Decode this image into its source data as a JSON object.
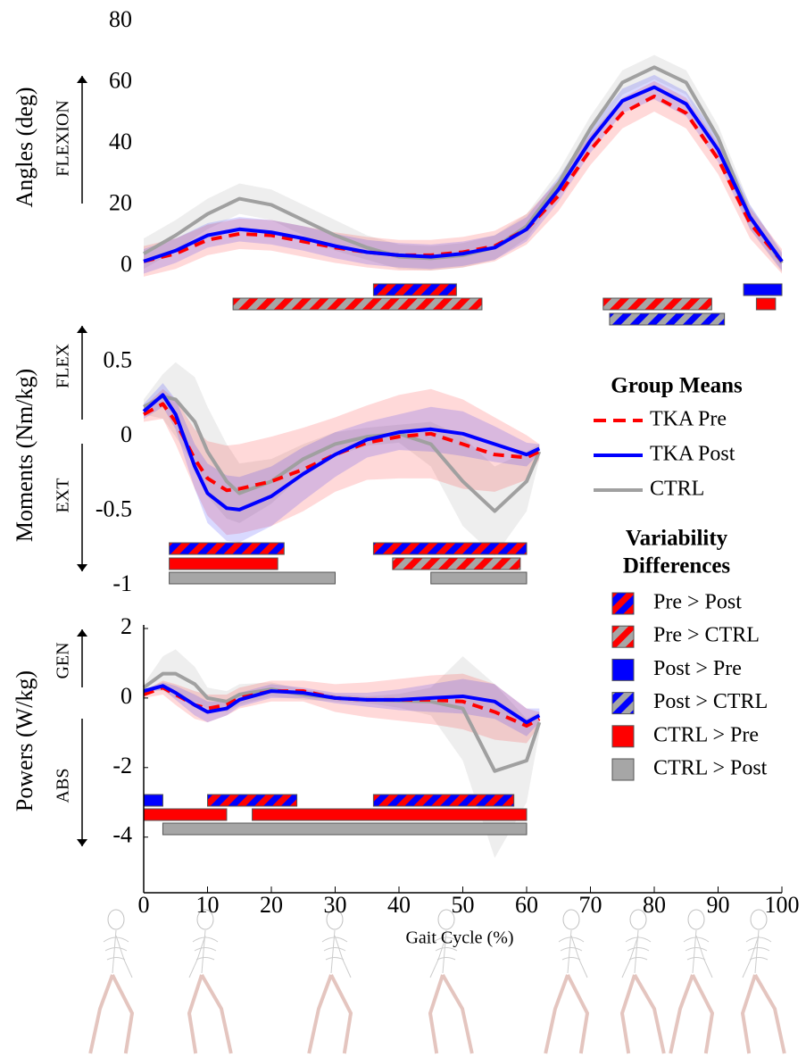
{
  "chart_data": [
    {
      "type": "line",
      "y_label": "Angles (deg)",
      "direction_labels": [
        "FLEXION"
      ],
      "ylim": [
        -5,
        80
      ],
      "yticks": [
        0,
        20,
        40,
        60,
        80
      ],
      "x": [
        0,
        5,
        10,
        15,
        20,
        25,
        30,
        35,
        40,
        45,
        50,
        55,
        60,
        65,
        70,
        75,
        80,
        85,
        90,
        95,
        100
      ],
      "series": [
        {
          "name": "TKA Pre",
          "color": "#ff0000",
          "style": "dashed",
          "values": [
            1.5,
            4,
            8.5,
            10.5,
            10,
            8,
            6,
            4.5,
            3.5,
            3.5,
            4.5,
            6.5,
            12,
            23,
            38,
            50,
            55.5,
            50,
            35,
            14,
            1.5
          ],
          "sd": [
            5,
            5,
            5,
            5,
            5,
            5,
            5,
            5,
            5,
            5,
            5,
            5,
            5,
            5,
            5,
            5,
            5,
            5,
            5,
            5,
            4
          ]
        },
        {
          "name": "TKA Post",
          "color": "#0000ff",
          "style": "solid",
          "values": [
            1.5,
            5,
            10,
            12,
            11,
            9,
            6.5,
            4.5,
            3.5,
            3,
            4,
            6,
            12,
            25,
            41,
            54,
            58.5,
            53,
            38,
            16,
            1.5
          ],
          "sd": [
            4,
            4,
            4,
            4,
            4,
            4,
            4,
            4,
            4,
            4,
            4,
            4,
            4,
            4,
            4,
            4,
            4,
            4,
            4,
            4,
            3
          ]
        },
        {
          "name": "CTRL",
          "color": "#a0a0a0",
          "style": "solid",
          "values": [
            4,
            10,
            17,
            22,
            20,
            15,
            10,
            6,
            3,
            2.5,
            3.5,
            6,
            13,
            27,
            45,
            60,
            65,
            60,
            42,
            16,
            1
          ],
          "sd": [
            5,
            5,
            5,
            5,
            5,
            5,
            5,
            4,
            4,
            4,
            4,
            4,
            4,
            4,
            4,
            4,
            4,
            4,
            4,
            4,
            3
          ]
        }
      ]
    },
    {
      "type": "line",
      "y_label": "Moments (Nm/kg)",
      "direction_labels": [
        "FLEX",
        "EXT"
      ],
      "ylim": [
        -1,
        0.75
      ],
      "yticks": [
        -1,
        -0.5,
        0,
        0.5
      ],
      "x": [
        0,
        3,
        5,
        8,
        10,
        13,
        15,
        20,
        25,
        30,
        35,
        40,
        45,
        50,
        55,
        60,
        62
      ],
      "series": [
        {
          "name": "TKA Pre",
          "color": "#ff0000",
          "style": "dashed",
          "values": [
            0.15,
            0.22,
            0.1,
            -0.15,
            -0.28,
            -0.36,
            -0.35,
            -0.3,
            -0.22,
            -0.12,
            -0.04,
            0,
            0.02,
            -0.05,
            -0.12,
            -0.14,
            -0.1
          ],
          "sd": [
            0.05,
            0.1,
            0.15,
            0.2,
            0.25,
            0.3,
            0.3,
            0.3,
            0.28,
            0.25,
            0.25,
            0.28,
            0.3,
            0.3,
            0.25,
            0.15,
            0.05
          ]
        },
        {
          "name": "TKA Post",
          "color": "#0000ff",
          "style": "solid",
          "values": [
            0.17,
            0.28,
            0.15,
            -0.2,
            -0.38,
            -0.48,
            -0.49,
            -0.4,
            -0.25,
            -0.12,
            -0.02,
            0.03,
            0.05,
            0.02,
            -0.05,
            -0.12,
            -0.08
          ],
          "sd": [
            0.05,
            0.08,
            0.1,
            0.15,
            0.2,
            0.22,
            0.22,
            0.2,
            0.18,
            0.15,
            0.12,
            0.12,
            0.15,
            0.15,
            0.12,
            0.08,
            0.03
          ]
        },
        {
          "name": "CTRL",
          "color": "#a0a0a0",
          "style": "solid",
          "values": [
            0.2,
            0.27,
            0.25,
            0.1,
            -0.1,
            -0.3,
            -0.38,
            -0.3,
            -0.15,
            -0.05,
            0,
            0.02,
            -0.05,
            -0.3,
            -0.5,
            -0.3,
            -0.1
          ],
          "sd": [
            0.05,
            0.15,
            0.25,
            0.3,
            0.3,
            0.25,
            0.2,
            0.15,
            0.1,
            0.08,
            0.06,
            0.06,
            0.15,
            0.3,
            0.3,
            0.2,
            0.05
          ]
        }
      ]
    },
    {
      "type": "line",
      "y_label": "Powers (W/kg)",
      "direction_labels": [
        "GEN",
        "ABS"
      ],
      "ylim": [
        -5.6,
        2
      ],
      "yticks": [
        -4,
        -2,
        0,
        2
      ],
      "xlabel": "Gait Cycle (%)",
      "xlim": [
        0,
        100
      ],
      "xticks": [
        0,
        10,
        20,
        30,
        40,
        50,
        60,
        70,
        80,
        90,
        100
      ],
      "x": [
        0,
        3,
        5,
        8,
        10,
        13,
        15,
        20,
        25,
        30,
        35,
        40,
        45,
        50,
        55,
        60,
        62
      ],
      "series": [
        {
          "name": "TKA Pre",
          "color": "#ff0000",
          "style": "dashed",
          "values": [
            0.1,
            0.3,
            0.1,
            -0.2,
            -0.3,
            -0.2,
            0,
            0.2,
            0.2,
            0,
            -0.05,
            -0.05,
            -0.05,
            -0.1,
            -0.4,
            -0.8,
            -0.6
          ],
          "sd": [
            0.1,
            0.2,
            0.3,
            0.4,
            0.4,
            0.3,
            0.3,
            0.3,
            0.3,
            0.4,
            0.5,
            0.6,
            0.7,
            0.8,
            0.8,
            0.5,
            0.2
          ]
        },
        {
          "name": "TKA Post",
          "color": "#0000ff",
          "style": "solid",
          "values": [
            0.2,
            0.35,
            0.15,
            -0.2,
            -0.4,
            -0.3,
            -0.05,
            0.2,
            0.15,
            0,
            -0.05,
            -0.05,
            0,
            0.05,
            -0.1,
            -0.7,
            -0.5
          ],
          "sd": [
            0.05,
            0.1,
            0.2,
            0.3,
            0.3,
            0.2,
            0.2,
            0.2,
            0.15,
            0.15,
            0.2,
            0.3,
            0.4,
            0.5,
            0.5,
            0.4,
            0.2
          ]
        },
        {
          "name": "CTRL",
          "color": "#a0a0a0",
          "style": "solid",
          "values": [
            0.3,
            0.7,
            0.7,
            0.4,
            0,
            -0.1,
            0.1,
            0.25,
            0.1,
            0,
            -0.05,
            -0.08,
            -0.1,
            -0.3,
            -2.1,
            -1.8,
            -0.7
          ],
          "sd": [
            0.1,
            0.5,
            0.7,
            0.5,
            0.3,
            0.3,
            0.3,
            0.2,
            0.15,
            0.1,
            0.1,
            0.2,
            0.4,
            1.5,
            2.5,
            1.2,
            0.3
          ]
        }
      ]
    }
  ],
  "legend": {
    "title": "Group Means"
  },
  "differences": {
    "title": [
      "Variability",
      "Differences"
    ],
    "keys": [
      {
        "name": "Pre > Post",
        "colors": [
          "#ff0000",
          "#0000ff"
        ],
        "spans": [
          [
            [
              36,
              49
            ]
          ],
          [
            [
              4,
              22
            ],
            [
              36,
              60
            ]
          ],
          [
            [
              10,
              24
            ],
            [
              36,
              58
            ]
          ]
        ]
      },
      {
        "name": "Pre > CTRL",
        "colors": [
          "#ff0000",
          "#a6a6a6"
        ],
        "spans": [
          [
            [
              14,
              53
            ],
            [
              72,
              89
            ]
          ],
          [
            [
              39,
              59
            ]
          ],
          []
        ]
      },
      {
        "name": "Post > Pre",
        "colors": [
          "#0000ff"
        ],
        "spans": [
          [
            [
              94,
              100
            ]
          ],
          [],
          [
            [
              0,
              3
            ]
          ]
        ]
      },
      {
        "name": "Post > CTRL",
        "colors": [
          "#0000ff",
          "#a6a6a6"
        ],
        "spans": [
          [
            [
              73,
              91
            ]
          ],
          [],
          []
        ]
      },
      {
        "name": "CTRL > Pre",
        "colors": [
          "#ff0000"
        ],
        "spans": [
          [
            [
              96,
              99
            ]
          ],
          [
            [
              4,
              21
            ]
          ],
          [
            [
              0,
              13
            ],
            [
              17,
              60
            ]
          ]
        ]
      },
      {
        "name": "CTRL > Post",
        "colors": [
          "#a6a6a6"
        ],
        "spans": [
          [],
          [
            [
              4,
              30
            ],
            [
              45,
              60
            ]
          ],
          [
            [
              3,
              60
            ]
          ]
        ]
      }
    ]
  }
}
